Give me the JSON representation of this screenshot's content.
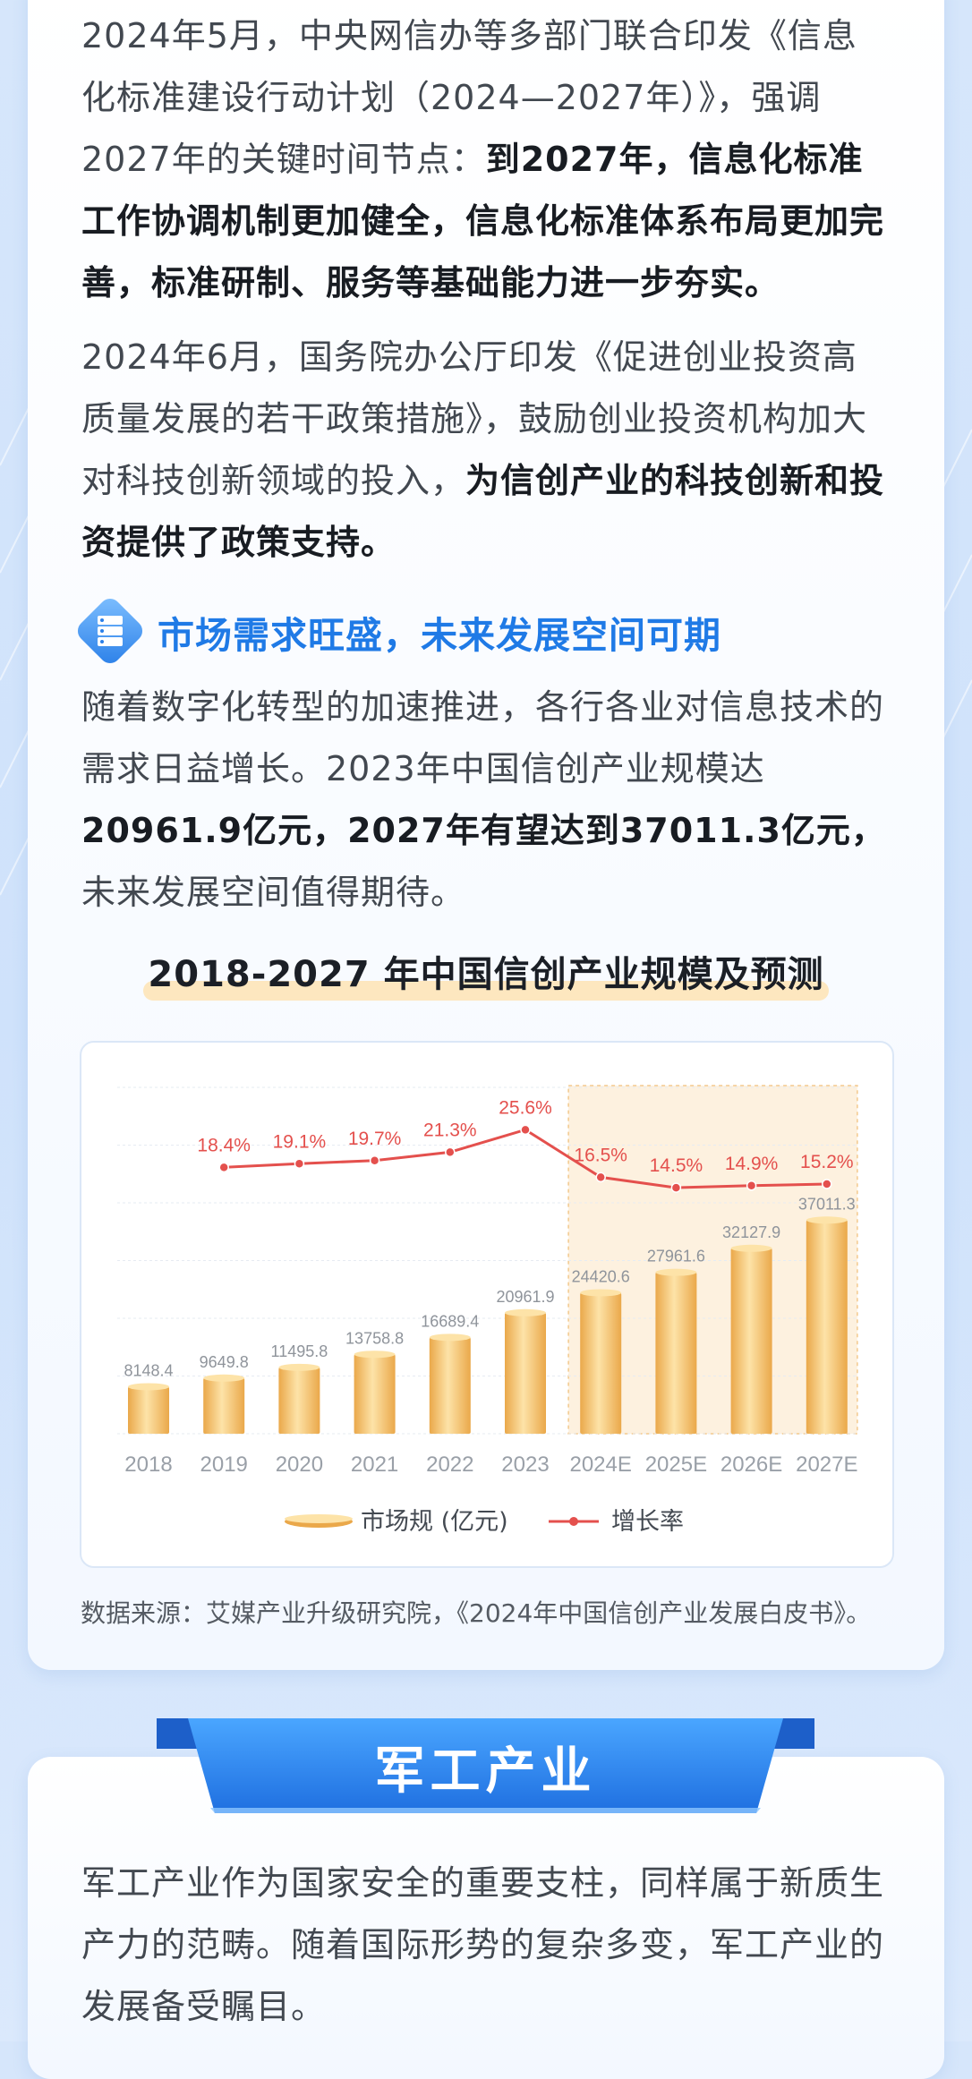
{
  "paragraphs": {
    "p1": {
      "normal": "2024年5月，中央网信办等多部门联合印发《信息化标准建设行动计划（2024—2027年）》，强调2027年的关键时间节点：",
      "bold": "到2027年，信息化标准工作协调机制更加健全，信息化标准体系布局更加完善，标准研制、服务等基础能力进一步夯实。"
    },
    "p2": {
      "normal": "2024年6月，国务院办公厅印发《促进创业投资高质量发展的若干政策措施》，鼓励创业投资机构加大对科技创新领域的投入，",
      "bold": "为信创产业的科技创新和投资提供了政策支持。"
    },
    "p3": {
      "normal": "随着数字化转型的加速推进，各行各业对信息技术的需求日益增长。2023年中国信创产业规模达",
      "bold": "20961.9亿元，2027年有望达到37011.3亿元，",
      "tail": "未来发展空间值得期待。"
    },
    "p4": {
      "normal": "军工产业作为国家安全的重要支柱，同样属于新质生产力的范畴。随着国际形势的复杂多变，军工产业的发展备受瞩目。"
    }
  },
  "section_heading": {
    "title": "市场需求旺盛，未来发展空间可期",
    "icon": "server-icon"
  },
  "chart_data": {
    "type": "bar",
    "title": "2018-2027 年中国信创产业规模及预测",
    "categories": [
      "2018",
      "2019",
      "2020",
      "2021",
      "2022",
      "2023",
      "2024E",
      "2025E",
      "2026E",
      "2027E"
    ],
    "series": [
      {
        "name": "市场规 (亿元)",
        "type": "bar",
        "values": [
          8148.4,
          9649.8,
          11495.8,
          13758.8,
          16689.4,
          20961.9,
          24420.6,
          27961.6,
          32127.9,
          37011.3
        ],
        "labels": [
          "8148.4",
          "9649.8",
          "11495.8",
          "13758.8",
          "16689.4",
          "20961.9",
          "24420.6",
          "27961.6",
          "32127.9",
          "37011.3"
        ]
      },
      {
        "name": "增长率",
        "type": "line",
        "values": [
          null,
          18.4,
          19.1,
          19.7,
          21.3,
          25.6,
          16.5,
          14.5,
          14.9,
          15.2
        ],
        "labels": [
          "",
          "18.4%",
          "19.1%",
          "19.7%",
          "21.3%",
          "25.6%",
          "16.5%",
          "14.5%",
          "14.9%",
          "15.2%"
        ]
      }
    ],
    "forecast_start_index": 6,
    "ylim_bar": [
      0,
      60000
    ],
    "legend_position": "bottom",
    "grid": true,
    "colors": {
      "bar_light": "#fde3a8",
      "bar_dark": "#eaa84a",
      "line": "#e4504d",
      "forecast_shade": "#fdf1df",
      "forecast_border": "#f3c98d",
      "axis_text": "#9aa0a8",
      "bar_label": "#8f949b",
      "grid": "#e6ebf2"
    }
  },
  "source": "数据来源：艾媒产业升级研究院，《2024年中国信创产业发展白皮书》。",
  "ribbon_title": "军工产业",
  "colors": {
    "accent_blue": "#1f7ae6",
    "ribbon_blue": "#2f8cf0",
    "highlight": "#fde7bf"
  }
}
